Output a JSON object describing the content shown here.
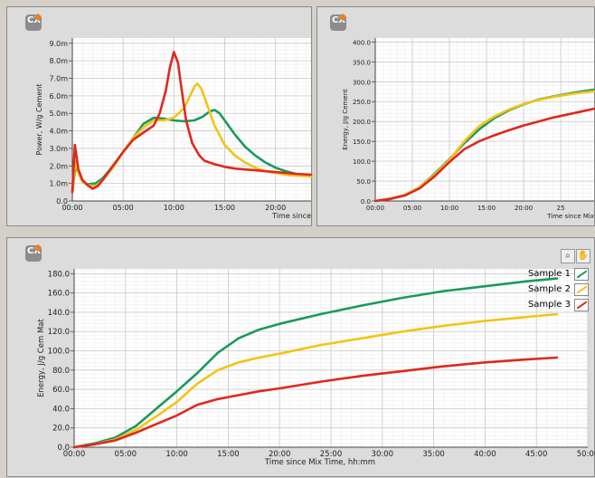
{
  "panels": {
    "power": {
      "logo": "CX"
    },
    "energy_top": {
      "logo": "CX"
    },
    "energy_bottom": {
      "logo": "CX"
    }
  },
  "chart_data": [
    {
      "type": "line",
      "title": "",
      "ylabel": "Power, W/g Cement",
      "xlabel": "Time since",
      "x_ticks": [
        "00:00",
        "05:00",
        "10:00",
        "15:00",
        "20:00"
      ],
      "y_ticks": [
        "0.0",
        "1.0m",
        "2.0m",
        "3.0m",
        "4.0m",
        "5.0m",
        "6.0m",
        "7.0m",
        "8.0m",
        "9.0m"
      ],
      "xlim": [
        0,
        23.5
      ],
      "ylim": [
        0,
        9.3
      ],
      "series": [
        {
          "color": "#1a9a5c",
          "x": [
            0,
            0.3,
            0.6,
            1,
            1.5,
            2.3,
            3,
            4,
            5,
            6,
            7,
            8,
            9,
            10,
            11,
            12,
            12.8,
            13.5,
            14,
            14.5,
            15,
            16,
            17,
            18,
            19,
            20,
            21,
            22,
            23.5
          ],
          "y": [
            0.5,
            2.0,
            1.6,
            1.1,
            0.95,
            1.0,
            1.3,
            2.0,
            2.8,
            3.6,
            4.4,
            4.75,
            4.7,
            4.6,
            4.55,
            4.6,
            4.8,
            5.1,
            5.2,
            5.0,
            4.6,
            3.8,
            3.1,
            2.6,
            2.2,
            1.9,
            1.7,
            1.55,
            1.45
          ]
        },
        {
          "color": "#f2c414",
          "x": [
            0,
            0.3,
            0.6,
            1,
            1.5,
            2.3,
            3,
            4,
            5,
            6,
            7,
            8,
            9,
            10,
            11,
            11.5,
            12,
            12.3,
            12.7,
            13.2,
            14,
            15,
            16,
            17,
            18,
            19,
            20,
            21,
            22,
            23.5
          ],
          "y": [
            0.5,
            2.3,
            1.6,
            1.1,
            0.9,
            0.85,
            1.2,
            1.9,
            2.8,
            3.6,
            4.2,
            4.6,
            4.6,
            4.75,
            5.3,
            5.9,
            6.5,
            6.7,
            6.4,
            5.6,
            4.3,
            3.2,
            2.6,
            2.2,
            1.9,
            1.7,
            1.6,
            1.5,
            1.45,
            1.4
          ]
        },
        {
          "color": "#e0281e",
          "x": [
            0,
            0.25,
            0.6,
            1,
            1.5,
            2,
            2.5,
            3,
            4,
            5,
            6,
            7,
            8,
            8.6,
            9.2,
            9.6,
            10,
            10.4,
            10.8,
            11.2,
            11.8,
            12.5,
            13,
            14,
            15,
            16,
            17,
            18,
            19,
            20,
            21,
            22,
            23.5
          ],
          "y": [
            0.5,
            3.2,
            1.8,
            1.2,
            0.9,
            0.7,
            0.85,
            1.2,
            2.0,
            2.8,
            3.5,
            3.9,
            4.3,
            5.0,
            6.3,
            7.6,
            8.5,
            7.9,
            6.2,
            4.6,
            3.3,
            2.6,
            2.3,
            2.1,
            1.95,
            1.85,
            1.8,
            1.75,
            1.7,
            1.65,
            1.6,
            1.55,
            1.5
          ]
        }
      ]
    },
    {
      "type": "line",
      "title": "",
      "ylabel": "Energy, J/g Cement",
      "xlabel": "Time since Mix",
      "x_ticks": [
        "00:00",
        "05:00",
        "10:00",
        "15:00",
        "20:00",
        "25"
      ],
      "y_ticks": [
        "0.0",
        "50.0",
        "100.0",
        "150.0",
        "200.0",
        "250.0",
        "300.0",
        "350.0",
        "400.0"
      ],
      "xlim": [
        0,
        29.5
      ],
      "ylim": [
        0,
        410
      ],
      "series": [
        {
          "color": "#1a9a5c",
          "x": [
            0,
            2,
            4,
            6,
            8,
            10,
            12,
            14,
            16,
            18,
            20,
            22,
            24,
            26,
            28,
            29.5
          ],
          "y": [
            0,
            6,
            15,
            35,
            68,
            105,
            145,
            180,
            208,
            228,
            243,
            255,
            263,
            270,
            276,
            280
          ]
        },
        {
          "color": "#f2c414",
          "x": [
            0,
            2,
            4,
            6,
            8,
            10,
            12,
            14,
            16,
            18,
            20,
            22,
            24,
            26,
            28,
            29.5
          ],
          "y": [
            0,
            6,
            15,
            35,
            66,
            103,
            150,
            188,
            212,
            230,
            244,
            254,
            262,
            268,
            273,
            276
          ]
        },
        {
          "color": "#e0281e",
          "x": [
            0,
            2,
            4,
            6,
            8,
            10,
            12,
            14,
            16,
            18,
            20,
            22,
            24,
            26,
            28,
            29.5
          ],
          "y": [
            0,
            5,
            14,
            32,
            62,
            98,
            130,
            150,
            165,
            178,
            190,
            200,
            210,
            218,
            226,
            232
          ]
        }
      ]
    },
    {
      "type": "line",
      "title": "",
      "ylabel": "Energy, J/g Cem Mat",
      "xlabel": "Time since Mix Time, hh:mm",
      "x_ticks": [
        "00:00",
        "05:00",
        "10:00",
        "15:00",
        "20:00",
        "25:00",
        "30:00",
        "35:00",
        "40:00",
        "45:00",
        "50:00"
      ],
      "y_ticks": [
        "0.0",
        "20.0",
        "40.0",
        "60.0",
        "80.0",
        "100.0",
        "120.0",
        "140.0",
        "160.0",
        "180.0"
      ],
      "xlim": [
        0,
        50
      ],
      "ylim": [
        0,
        185
      ],
      "series": [
        {
          "name": "Sample 1",
          "color": "#1a9a5c",
          "x": [
            0,
            2,
            4,
            6,
            8,
            10,
            12,
            14,
            16,
            18,
            20,
            24,
            28,
            32,
            36,
            40,
            44,
            47
          ],
          "y": [
            0,
            4,
            10,
            22,
            40,
            58,
            77,
            98,
            113,
            122,
            128,
            138,
            147,
            155,
            162,
            167,
            172,
            175
          ]
        },
        {
          "name": "Sample 2",
          "color": "#f2c414",
          "x": [
            0,
            2,
            4,
            6,
            8,
            10,
            12,
            14,
            16,
            18,
            20,
            24,
            28,
            32,
            36,
            40,
            44,
            47
          ],
          "y": [
            0,
            3,
            8,
            18,
            32,
            47,
            66,
            80,
            88,
            93,
            97,
            106,
            113,
            120,
            126,
            131,
            135,
            138
          ]
        },
        {
          "name": "Sample 3",
          "color": "#e0281e",
          "x": [
            0,
            2,
            4,
            6,
            8,
            10,
            12,
            14,
            16,
            18,
            20,
            24,
            28,
            32,
            36,
            40,
            44,
            47
          ],
          "y": [
            0,
            3,
            7,
            15,
            24,
            33,
            44,
            50,
            54,
            58,
            61,
            68,
            74,
            79,
            84,
            88,
            91,
            93
          ]
        }
      ]
    }
  ]
}
